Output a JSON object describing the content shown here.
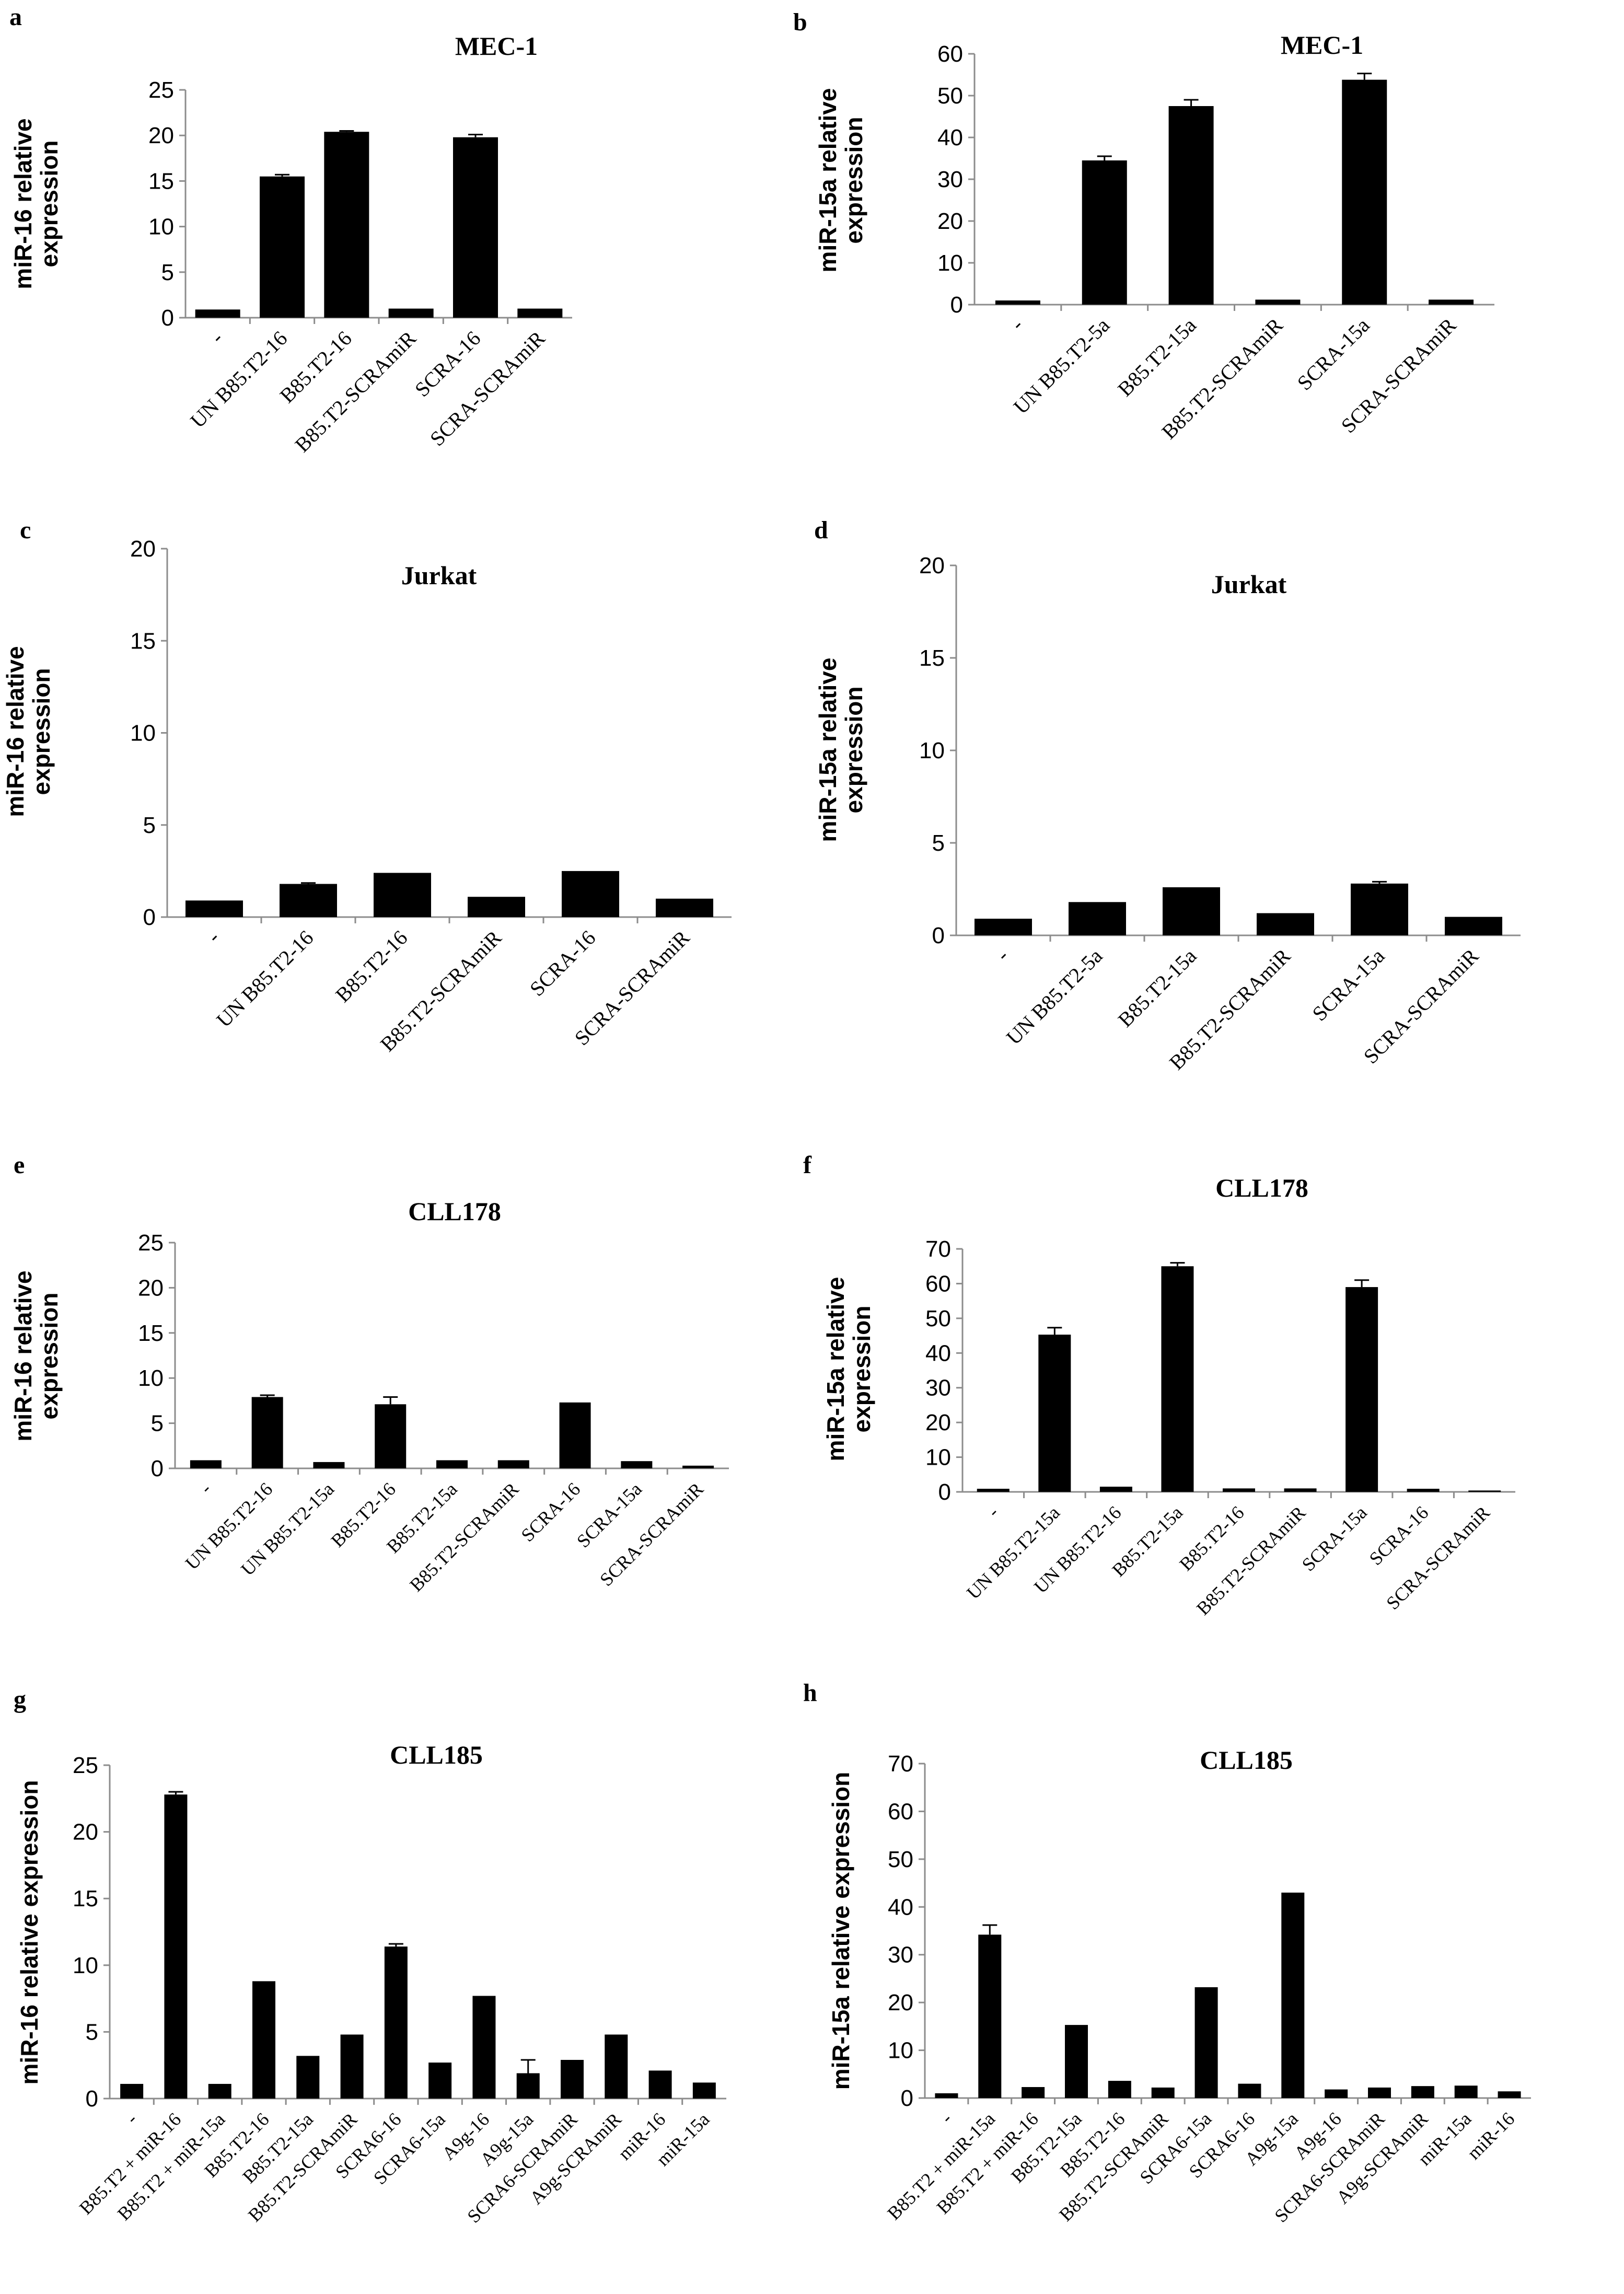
{
  "figure": {
    "panels": [
      "a",
      "b",
      "c",
      "d",
      "e",
      "f",
      "g",
      "h"
    ]
  },
  "chart_data": [
    {
      "panel": "a",
      "type": "bar",
      "title": "MEC-1",
      "ylabel": "miR-16 relative expression",
      "ylabel_lines": [
        "miR-16 relative",
        "expression"
      ],
      "ylim": [
        0,
        25
      ],
      "yticks": [
        0,
        5,
        10,
        15,
        20,
        25
      ],
      "grid": false,
      "categories": [
        "-",
        "UN B85.T2-16",
        "B85.T2-16",
        "B85.T2-SCRAmiR",
        "SCRA-16",
        "SCRA-SCRAmiR"
      ],
      "values": [
        0.9,
        15.5,
        20.4,
        1.0,
        19.8,
        1.0
      ],
      "errors": [
        0,
        0.2,
        0.1,
        0,
        0.3,
        0
      ]
    },
    {
      "panel": "b",
      "type": "bar",
      "title": "MEC-1",
      "ylabel": "miR-15a relative expression",
      "ylabel_lines": [
        "miR-15a relative",
        "expression"
      ],
      "ylim": [
        0,
        60
      ],
      "yticks": [
        0,
        10,
        20,
        30,
        40,
        50,
        60
      ],
      "grid": false,
      "categories": [
        "-",
        "UN B85.T2-5a",
        "B85.T2-15a",
        "B85.T2-SCRAmiR",
        "SCRA-15a",
        "SCRA-SCRAmiR"
      ],
      "values": [
        1.0,
        34.5,
        47.5,
        1.2,
        53.8,
        1.2
      ],
      "errors": [
        0,
        1.0,
        1.5,
        0,
        1.5,
        0
      ]
    },
    {
      "panel": "c",
      "type": "bar",
      "title": "Jurkat",
      "ylabel": "miR-16 relative expression",
      "ylabel_lines": [
        "miR-16 relative",
        "expression"
      ],
      "ylim": [
        0,
        20
      ],
      "yticks": [
        0,
        5,
        10,
        15,
        20
      ],
      "grid": false,
      "categories": [
        "-",
        "UN B85.T2-16",
        "B85.T2-16",
        "B85.T2-SCRAmiR",
        "SCRA-16",
        "SCRA-SCRAmiR"
      ],
      "values": [
        0.9,
        1.8,
        2.4,
        1.1,
        2.5,
        1.0
      ],
      "errors": [
        0,
        0.05,
        0,
        0,
        0,
        0
      ]
    },
    {
      "panel": "d",
      "type": "bar",
      "title": "Jurkat",
      "ylabel": "miR-15a relative expression",
      "ylabel_lines": [
        "miR-15a relative",
        "expression"
      ],
      "ylim": [
        0,
        20
      ],
      "yticks": [
        0,
        5,
        10,
        15,
        20
      ],
      "grid": false,
      "categories": [
        "-",
        "UN B85.T2-5a",
        "B85.T2-15a",
        "B85.T2-SCRAmiR",
        "SCRA-15a",
        "SCRA-SCRAmiR"
      ],
      "values": [
        0.9,
        1.8,
        2.6,
        1.2,
        2.8,
        1.0
      ],
      "errors": [
        0,
        0,
        0,
        0,
        0.1,
        0
      ]
    },
    {
      "panel": "e",
      "type": "bar",
      "title": "CLL178",
      "ylabel": "miR-16 relative expression",
      "ylabel_lines": [
        "miR-16 relative",
        "expression"
      ],
      "ylim": [
        0,
        25
      ],
      "yticks": [
        0,
        5,
        10,
        15,
        20,
        25
      ],
      "grid": false,
      "categories": [
        "-",
        "UN B85.T2-16",
        "UN B85.T2-15a",
        "B85.T2-16",
        "B85.T2-15a",
        "B85.T2-SCRAmiR",
        "SCRA-16",
        "SCRA-15a",
        "SCRA-SCRAmiR"
      ],
      "values": [
        0.9,
        7.9,
        0.7,
        7.1,
        0.9,
        0.9,
        7.3,
        0.8,
        0.3
      ],
      "errors": [
        0,
        0.2,
        0,
        0.8,
        0,
        0,
        0,
        0,
        0
      ]
    },
    {
      "panel": "f",
      "type": "bar",
      "title": "CLL178",
      "ylabel": "miR-15a relative expression",
      "ylabel_lines": [
        "miR-15a relative",
        "expression"
      ],
      "ylim": [
        0,
        70
      ],
      "yticks": [
        0,
        10,
        20,
        30,
        40,
        50,
        60,
        70
      ],
      "grid": false,
      "categories": [
        "-",
        "UN B85.T2-15a",
        "UN B85.T2-16",
        "B85.T2-15a",
        "B85.T2-16",
        "B85.T2-SCRAmiR",
        "SCRA-15a",
        "SCRA-16",
        "SCRA-SCRAmiR"
      ],
      "values": [
        0.9,
        45.3,
        1.5,
        65.0,
        1.0,
        1.0,
        59.0,
        0.9,
        0.4
      ],
      "errors": [
        0,
        2.0,
        0,
        1.0,
        0,
        0,
        2.0,
        0,
        0
      ]
    },
    {
      "panel": "g",
      "type": "bar",
      "title": "CLL185",
      "ylabel": "miR-16 relative expression",
      "ylabel_lines": [
        "miR-16 relative expression"
      ],
      "ylim": [
        0,
        25
      ],
      "yticks": [
        0,
        5,
        10,
        15,
        20,
        25
      ],
      "grid": false,
      "categories": [
        "-",
        "B85.T2 + miR-16",
        "B85.T2 + miR-15a",
        "B85.T2-16",
        "B85.T2-15a",
        "B85.T2-SCRAmiR",
        "SCRA6-16",
        "SCRA6-15a",
        "A9g-16",
        "A9g-15a",
        "SCRA6-SCRAmiR",
        "A9g-SCRAmiR",
        "miR-16",
        "miR-15a"
      ],
      "values": [
        1.1,
        22.8,
        1.1,
        8.8,
        3.2,
        4.8,
        11.4,
        2.7,
        7.7,
        1.9,
        2.9,
        4.8,
        2.1,
        1.2
      ],
      "errors": [
        0,
        0.2,
        0,
        0,
        0,
        0,
        0.2,
        0,
        0,
        1.0,
        0,
        0,
        0,
        0
      ]
    },
    {
      "panel": "h",
      "type": "bar",
      "title": "CLL185",
      "ylabel": "miR-15a relative expression",
      "ylabel_lines": [
        "miR-15a relative expression"
      ],
      "ylim": [
        0,
        70
      ],
      "yticks": [
        0,
        10,
        20,
        30,
        40,
        50,
        60,
        70
      ],
      "grid": false,
      "categories": [
        "-",
        "B85.T2 + miR-15a",
        "B85.T2 + miR-16",
        "B85.T2-15a",
        "B85.T2-16",
        "B85.T2-SCRAmiR",
        "SCRA6-15a",
        "SCRA6-16",
        "A9g-15a",
        "A9g-16",
        "SCRA6-SCRAmiR",
        "A9g-SCRAmiR",
        "miR-15a",
        "miR-16"
      ],
      "values": [
        1.0,
        34.2,
        2.3,
        15.3,
        3.6,
        2.2,
        23.2,
        3.0,
        43.0,
        1.8,
        2.2,
        2.5,
        2.6,
        1.4
      ],
      "errors": [
        0,
        2.0,
        0,
        0,
        0,
        0,
        0,
        0,
        0,
        0,
        0,
        0,
        0,
        0
      ]
    }
  ]
}
